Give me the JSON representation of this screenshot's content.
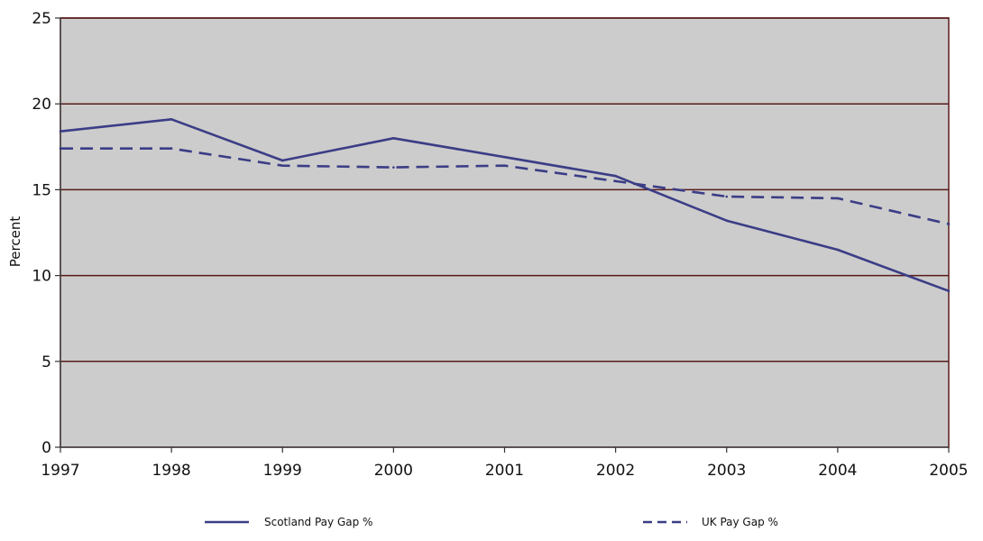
{
  "chart_data": {
    "type": "line",
    "title": "",
    "xlabel": "",
    "ylabel": "Percent",
    "x": [
      "1997",
      "1998",
      "1999",
      "2000",
      "2001",
      "2002",
      "2003",
      "2004",
      "2005"
    ],
    "y_ticks": [
      "0",
      "5",
      "10",
      "15",
      "20",
      "25"
    ],
    "ylim": [
      0,
      25
    ],
    "grid": true,
    "plot_background": "#cccccc",
    "gridline_color": "#5a1a1a",
    "legend_position": "bottom",
    "series": [
      {
        "name": "Scotland Pay Gap %",
        "style": "solid",
        "color": "#3b3d86",
        "values": [
          18.4,
          19.1,
          16.7,
          18.0,
          16.9,
          15.8,
          13.2,
          11.5,
          9.1
        ]
      },
      {
        "name": "UK Pay Gap %",
        "style": "dashed",
        "color": "#3b3d86",
        "values": [
          17.4,
          17.4,
          16.4,
          16.3,
          16.4,
          15.5,
          14.6,
          14.5,
          13.0
        ]
      }
    ]
  }
}
